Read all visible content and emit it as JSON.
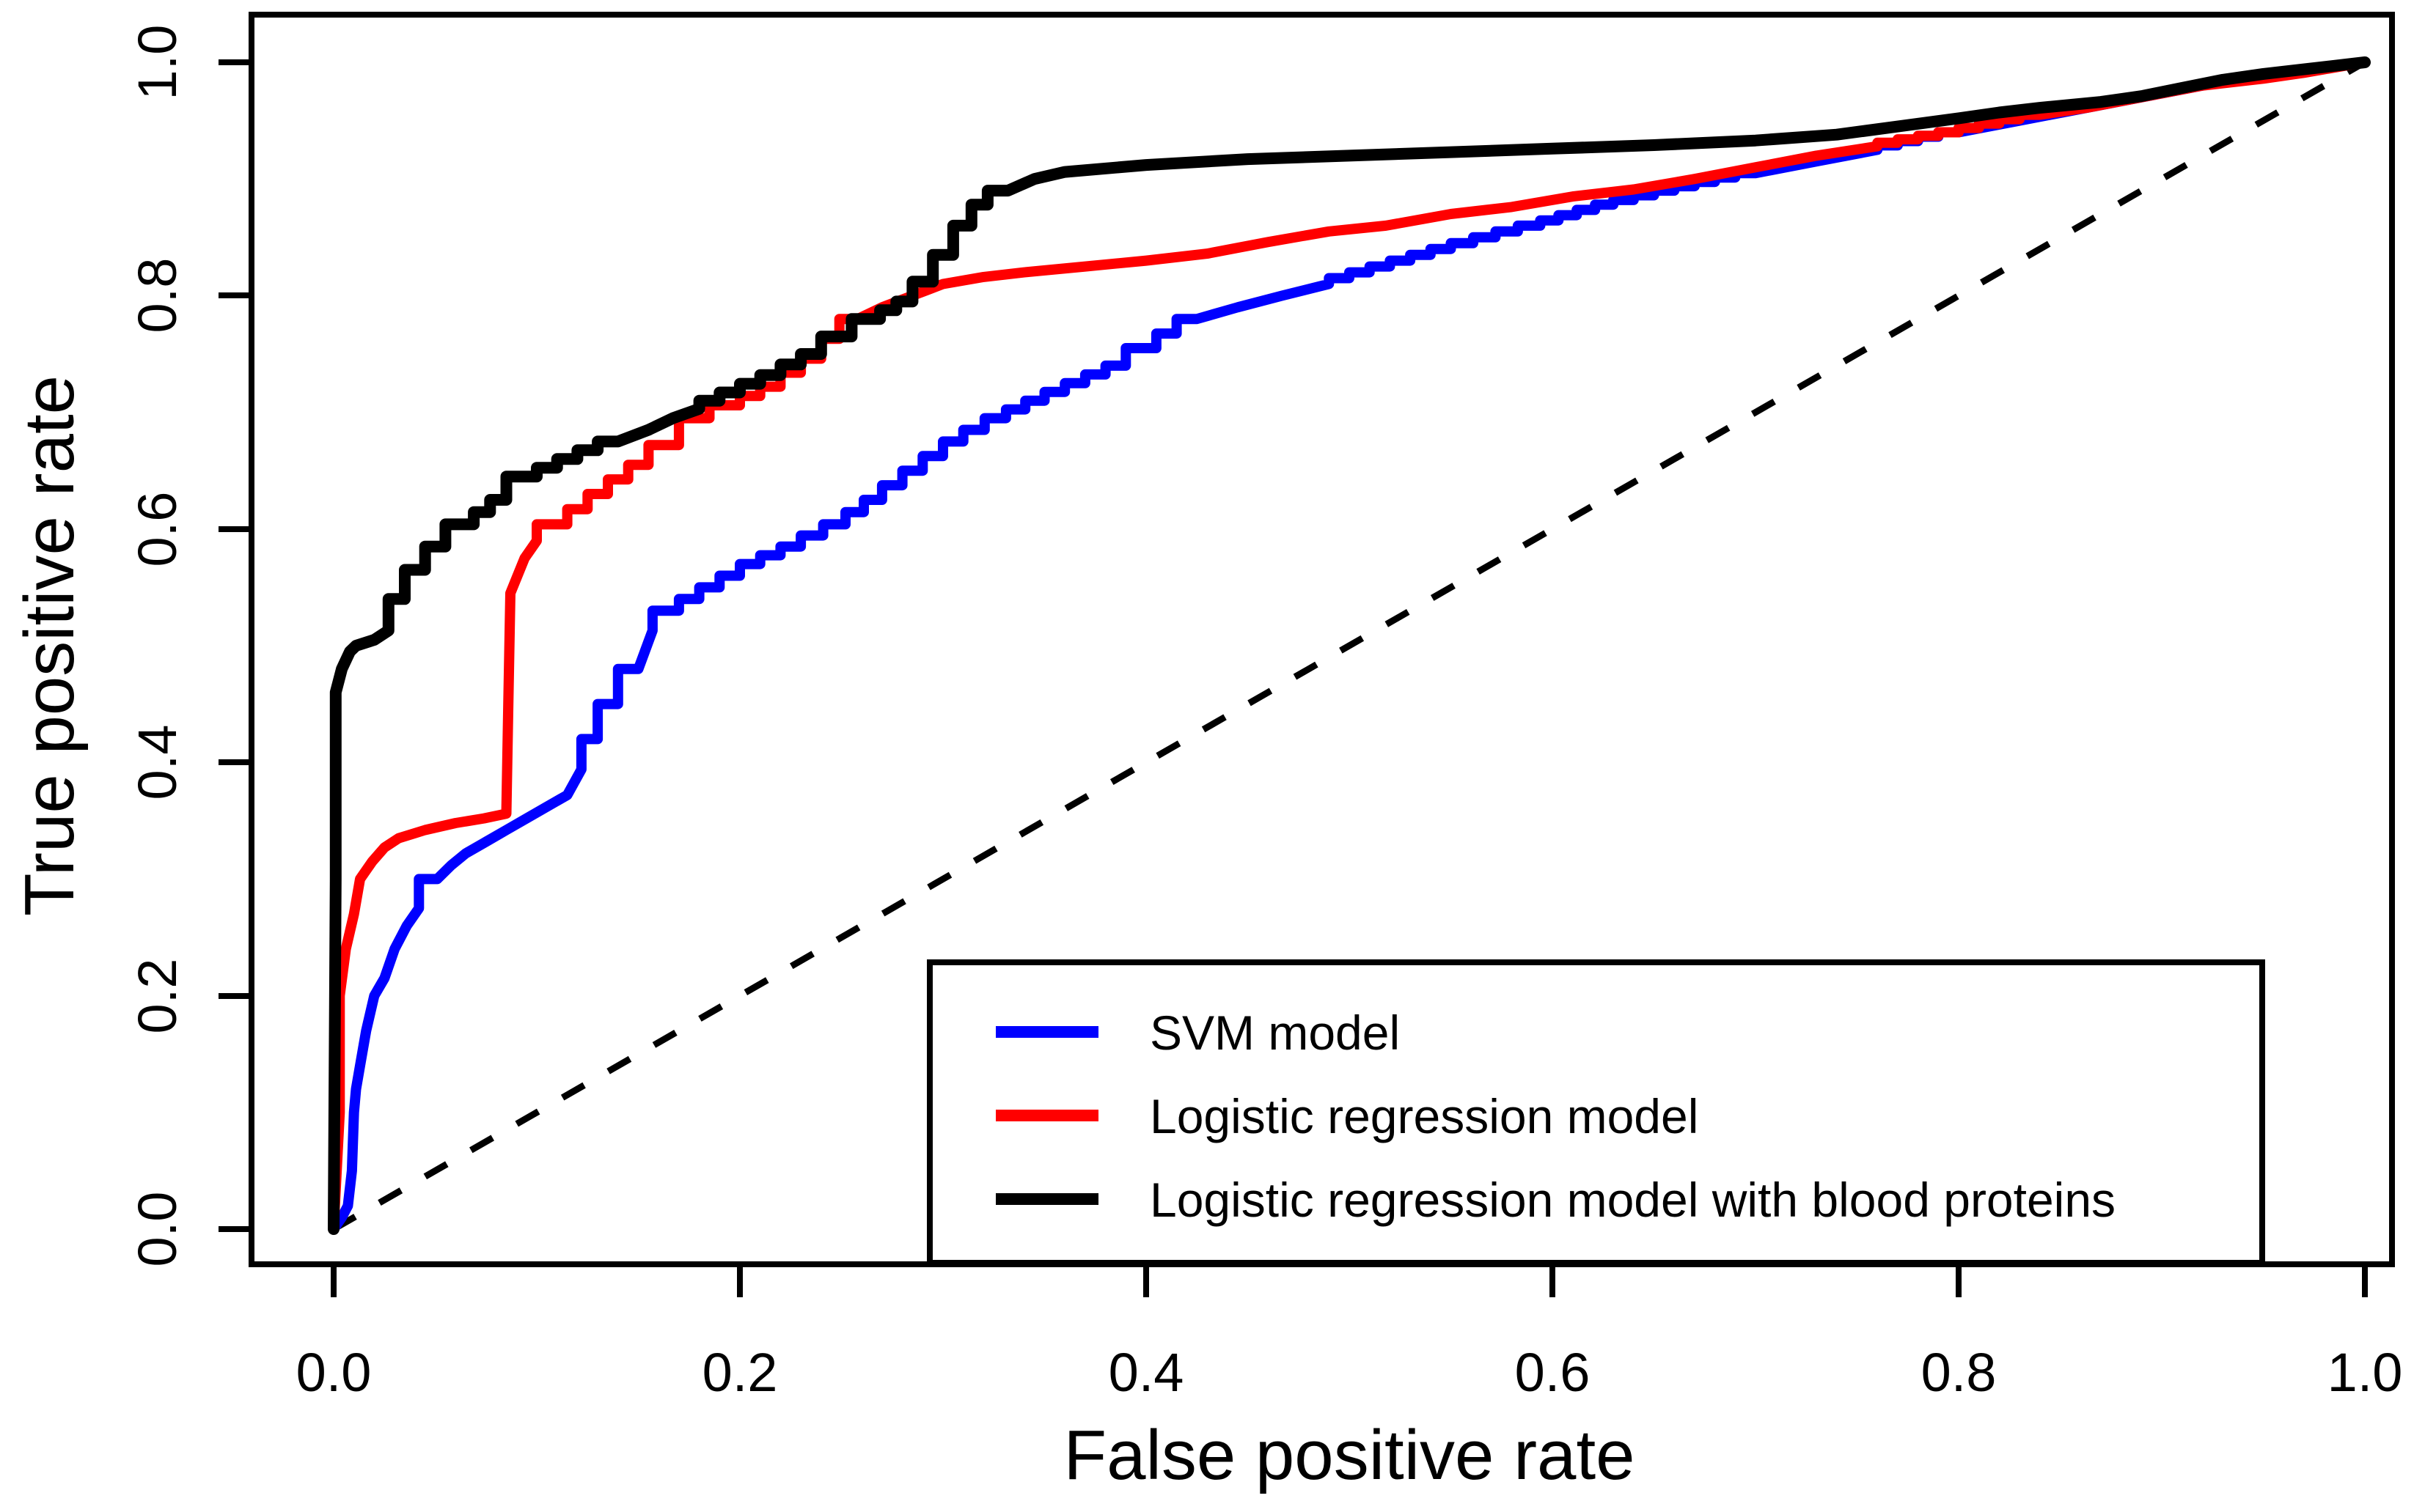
{
  "chart_data": {
    "type": "line",
    "subtype": "roc-curves",
    "title": "",
    "xlabel": "False positive rate",
    "ylabel": "True positive rate",
    "xlim": [
      0,
      1
    ],
    "ylim": [
      0,
      1
    ],
    "grid": false,
    "x_tick_labels": [
      "0.0",
      "0.2",
      "0.4",
      "0.6",
      "0.8",
      "1.0"
    ],
    "y_tick_labels": [
      "0.0",
      "0.2",
      "0.4",
      "0.6",
      "0.8",
      "1.0"
    ],
    "legend_position": "bottom-right-inside-box",
    "reference_line": {
      "name": "chance diagonal",
      "style": "dashed",
      "color": "#000000",
      "from": [
        0,
        0
      ],
      "to": [
        1,
        1
      ]
    },
    "series": [
      {
        "name": "SVM model",
        "color": "#0000FF",
        "line_width": 14,
        "points": [
          [
            0,
            0
          ],
          [
            0.004,
            0.01
          ],
          [
            0.007,
            0.02
          ],
          [
            0.009,
            0.05
          ],
          [
            0.01,
            0.1
          ],
          [
            0.011,
            0.12
          ],
          [
            0.013,
            0.14
          ],
          [
            0.016,
            0.17
          ],
          [
            0.02,
            0.2
          ],
          [
            0.025,
            0.215
          ],
          [
            0.03,
            0.24
          ],
          [
            0.036,
            0.26
          ],
          [
            0.042,
            0.275
          ],
          [
            0.051,
            0.3
          ],
          [
            0.058,
            0.312
          ],
          [
            0.065,
            0.322
          ],
          [
            0.075,
            0.332
          ],
          [
            0.085,
            0.342
          ],
          [
            0.095,
            0.352
          ],
          [
            0.105,
            0.362
          ],
          [
            0.115,
            0.372
          ],
          [
            0.122,
            0.394
          ],
          [
            0.13,
            0.42
          ],
          [
            0.14,
            0.45
          ],
          [
            0.15,
            0.48
          ],
          [
            0.157,
            0.513
          ],
          [
            0.17,
            0.53
          ],
          [
            0.19,
            0.55
          ],
          [
            0.21,
            0.57
          ],
          [
            0.23,
            0.585
          ],
          [
            0.252,
            0.604
          ],
          [
            0.27,
            0.625
          ],
          [
            0.29,
            0.65
          ],
          [
            0.31,
            0.675
          ],
          [
            0.331,
            0.695
          ],
          [
            0.35,
            0.71
          ],
          [
            0.37,
            0.725
          ],
          [
            0.39,
            0.74
          ],
          [
            0.405,
            0.755
          ],
          [
            0.425,
            0.78
          ],
          [
            0.445,
            0.79
          ],
          [
            0.467,
            0.8
          ],
          [
            0.49,
            0.81
          ],
          [
            0.52,
            0.825
          ],
          [
            0.55,
            0.84
          ],
          [
            0.594,
            0.86
          ],
          [
            0.63,
            0.878
          ],
          [
            0.66,
            0.89
          ],
          [
            0.7,
            0.905
          ],
          [
            0.73,
            0.915
          ],
          [
            0.76,
            0.925
          ],
          [
            0.8,
            0.94
          ],
          [
            0.83,
            0.95
          ],
          [
            0.86,
            0.96
          ],
          [
            0.89,
            0.97
          ],
          [
            0.92,
            0.98
          ],
          [
            0.95,
            0.99
          ],
          [
            1.0,
            1.0
          ]
        ]
      },
      {
        "name": "Logistic regression model",
        "color": "#FF0000",
        "line_width": 14,
        "points": [
          [
            0,
            0
          ],
          [
            0.003,
            0.1
          ],
          [
            0.003,
            0.2
          ],
          [
            0.006,
            0.24
          ],
          [
            0.01,
            0.27
          ],
          [
            0.013,
            0.3
          ],
          [
            0.019,
            0.315
          ],
          [
            0.025,
            0.327
          ],
          [
            0.032,
            0.335
          ],
          [
            0.045,
            0.342
          ],
          [
            0.06,
            0.348
          ],
          [
            0.074,
            0.352
          ],
          [
            0.085,
            0.356
          ],
          [
            0.086,
            0.45
          ],
          [
            0.087,
            0.545
          ],
          [
            0.094,
            0.575
          ],
          [
            0.1,
            0.59
          ],
          [
            0.115,
            0.604
          ],
          [
            0.135,
            0.63
          ],
          [
            0.155,
            0.655
          ],
          [
            0.17,
            0.672
          ],
          [
            0.185,
            0.695
          ],
          [
            0.2,
            0.706
          ],
          [
            0.22,
            0.722
          ],
          [
            0.24,
            0.746
          ],
          [
            0.258,
            0.78
          ],
          [
            0.27,
            0.79
          ],
          [
            0.285,
            0.8
          ],
          [
            0.3,
            0.81
          ],
          [
            0.32,
            0.816
          ],
          [
            0.34,
            0.82
          ],
          [
            0.37,
            0.825
          ],
          [
            0.4,
            0.83
          ],
          [
            0.43,
            0.836
          ],
          [
            0.46,
            0.846
          ],
          [
            0.49,
            0.855
          ],
          [
            0.518,
            0.86
          ],
          [
            0.55,
            0.87
          ],
          [
            0.58,
            0.876
          ],
          [
            0.61,
            0.885
          ],
          [
            0.64,
            0.891
          ],
          [
            0.67,
            0.9
          ],
          [
            0.7,
            0.91
          ],
          [
            0.73,
            0.92
          ],
          [
            0.76,
            0.928
          ],
          [
            0.8,
            0.94
          ],
          [
            0.84,
            0.955
          ],
          [
            0.863,
            0.961
          ],
          [
            0.89,
            0.97
          ],
          [
            0.92,
            0.98
          ],
          [
            0.95,
            0.986
          ],
          [
            0.97,
            0.991
          ],
          [
            1.0,
            1.0
          ]
        ]
      },
      {
        "name": "Logistic regression model with blood proteins",
        "color": "#000000",
        "line_width": 16,
        "points": [
          [
            0,
            0
          ],
          [
            0.001,
            0.3
          ],
          [
            0.001,
            0.46
          ],
          [
            0.004,
            0.48
          ],
          [
            0.008,
            0.495
          ],
          [
            0.011,
            0.5
          ],
          [
            0.02,
            0.505
          ],
          [
            0.027,
            0.513
          ],
          [
            0.035,
            0.54
          ],
          [
            0.045,
            0.565
          ],
          [
            0.055,
            0.585
          ],
          [
            0.069,
            0.604
          ],
          [
            0.085,
            0.625
          ],
          [
            0.1,
            0.645
          ],
          [
            0.12,
            0.66
          ],
          [
            0.14,
            0.675
          ],
          [
            0.155,
            0.685
          ],
          [
            0.167,
            0.695
          ],
          [
            0.18,
            0.703
          ],
          [
            0.2,
            0.717
          ],
          [
            0.22,
            0.732
          ],
          [
            0.24,
            0.75
          ],
          [
            0.255,
            0.765
          ],
          [
            0.269,
            0.78
          ],
          [
            0.285,
            0.795
          ],
          [
            0.295,
            0.812
          ],
          [
            0.305,
            0.835
          ],
          [
            0.314,
            0.86
          ],
          [
            0.322,
            0.878
          ],
          [
            0.332,
            0.89
          ],
          [
            0.345,
            0.9
          ],
          [
            0.36,
            0.906
          ],
          [
            0.4,
            0.912
          ],
          [
            0.45,
            0.917
          ],
          [
            0.5,
            0.92
          ],
          [
            0.55,
            0.923
          ],
          [
            0.6,
            0.926
          ],
          [
            0.65,
            0.929
          ],
          [
            0.7,
            0.933
          ],
          [
            0.74,
            0.938
          ],
          [
            0.77,
            0.945
          ],
          [
            0.8,
            0.952
          ],
          [
            0.82,
            0.957
          ],
          [
            0.84,
            0.961
          ],
          [
            0.87,
            0.966
          ],
          [
            0.89,
            0.971
          ],
          [
            0.91,
            0.978
          ],
          [
            0.93,
            0.985
          ],
          [
            0.95,
            0.99
          ],
          [
            0.97,
            0.994
          ],
          [
            1.0,
            1.0
          ]
        ]
      }
    ]
  }
}
